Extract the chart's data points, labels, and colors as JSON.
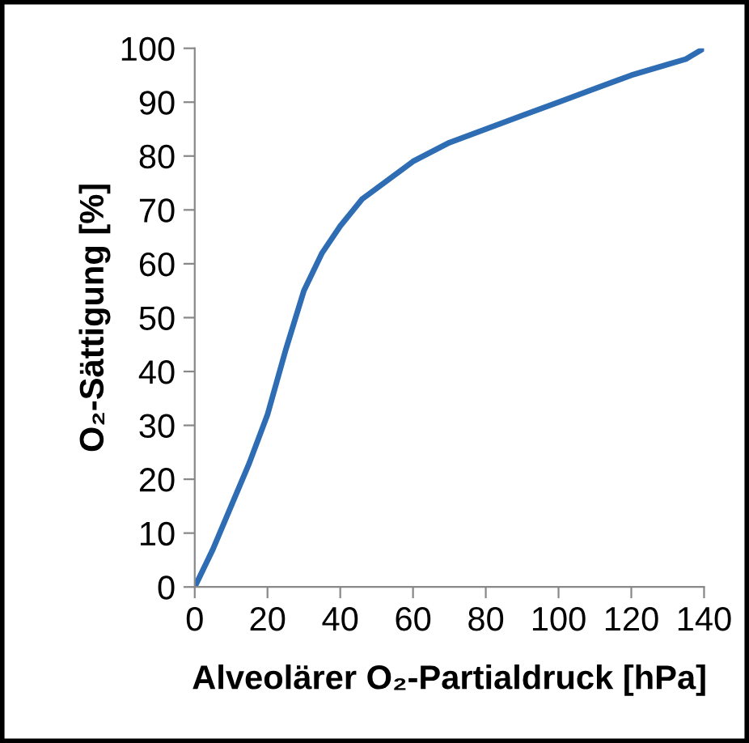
{
  "chart_data": {
    "type": "line",
    "xlabel": "Alveolärer O₂-Partialdruck [hPa]",
    "ylabel": "O₂-Sättigung [%]",
    "x": [
      0,
      5,
      10,
      15,
      20,
      25,
      30,
      35,
      40,
      46,
      50,
      60,
      70,
      80,
      90,
      100,
      110,
      120,
      130,
      135,
      140
    ],
    "series": [
      {
        "color": "#2e6db4",
        "values": [
          0,
          7,
          15,
          23,
          32,
          44,
          55,
          62,
          67,
          72,
          74,
          79,
          82.5,
          85,
          87.5,
          90,
          92.5,
          95,
          97,
          98,
          100
        ]
      }
    ],
    "xlim": [
      0,
      140
    ],
    "xticks": [
      0,
      20,
      40,
      60,
      80,
      100,
      120,
      140
    ],
    "ylim": [
      0,
      100
    ],
    "yticks": [
      0,
      10,
      20,
      30,
      40,
      50,
      60,
      70,
      80,
      90,
      100
    ],
    "grid": false,
    "legend": false,
    "marker": "none",
    "line_style": "solid"
  }
}
